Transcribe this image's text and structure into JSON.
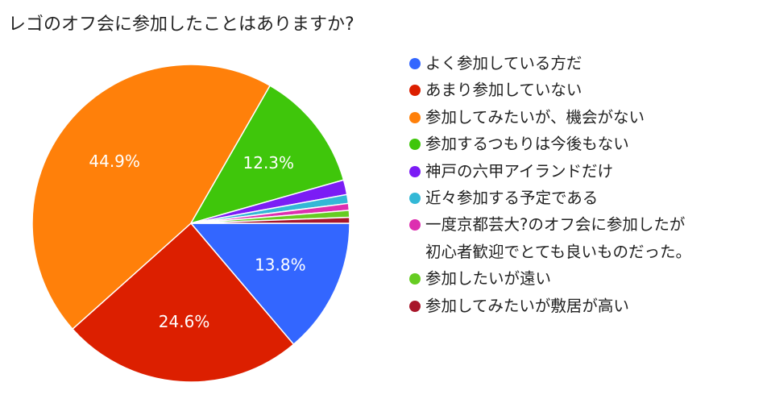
{
  "chart_data": {
    "type": "pie",
    "title": "レゴのオフ会に参加したことはありますか?",
    "legend_position": "right",
    "slices": [
      {
        "name": "よく参加している方だ",
        "value": 13.8,
        "label": "13.8%",
        "color": "#3366ff"
      },
      {
        "name": "あまり参加していない",
        "value": 24.6,
        "label": "24.6%",
        "color": "#dc1f00"
      },
      {
        "name": "参加してみたいが、機会がない",
        "value": 44.9,
        "label": "44.9%",
        "color": "#ff800a"
      },
      {
        "name": "参加するつもりは今後もない",
        "value": 12.3,
        "label": "12.3%",
        "color": "#3fc60b"
      },
      {
        "name": "神戸の六甲アイランドだけ",
        "value": 1.5,
        "label": "",
        "color": "#7b1cf5"
      },
      {
        "name": "近々参加する予定である",
        "value": 0.9,
        "label": "",
        "color": "#33b8d6"
      },
      {
        "name": "一度京都芸大?のオフ会に参加したが\n初心者歓迎でとても良いものだった。",
        "value": 0.7,
        "label": "",
        "color": "#dd2fb0"
      },
      {
        "name": "参加したいが遠い",
        "value": 0.7,
        "label": "",
        "color": "#66cc22"
      },
      {
        "name": "参加してみたいが敷居が高い",
        "value": 0.6,
        "label": "",
        "color": "#a8162a"
      }
    ]
  }
}
